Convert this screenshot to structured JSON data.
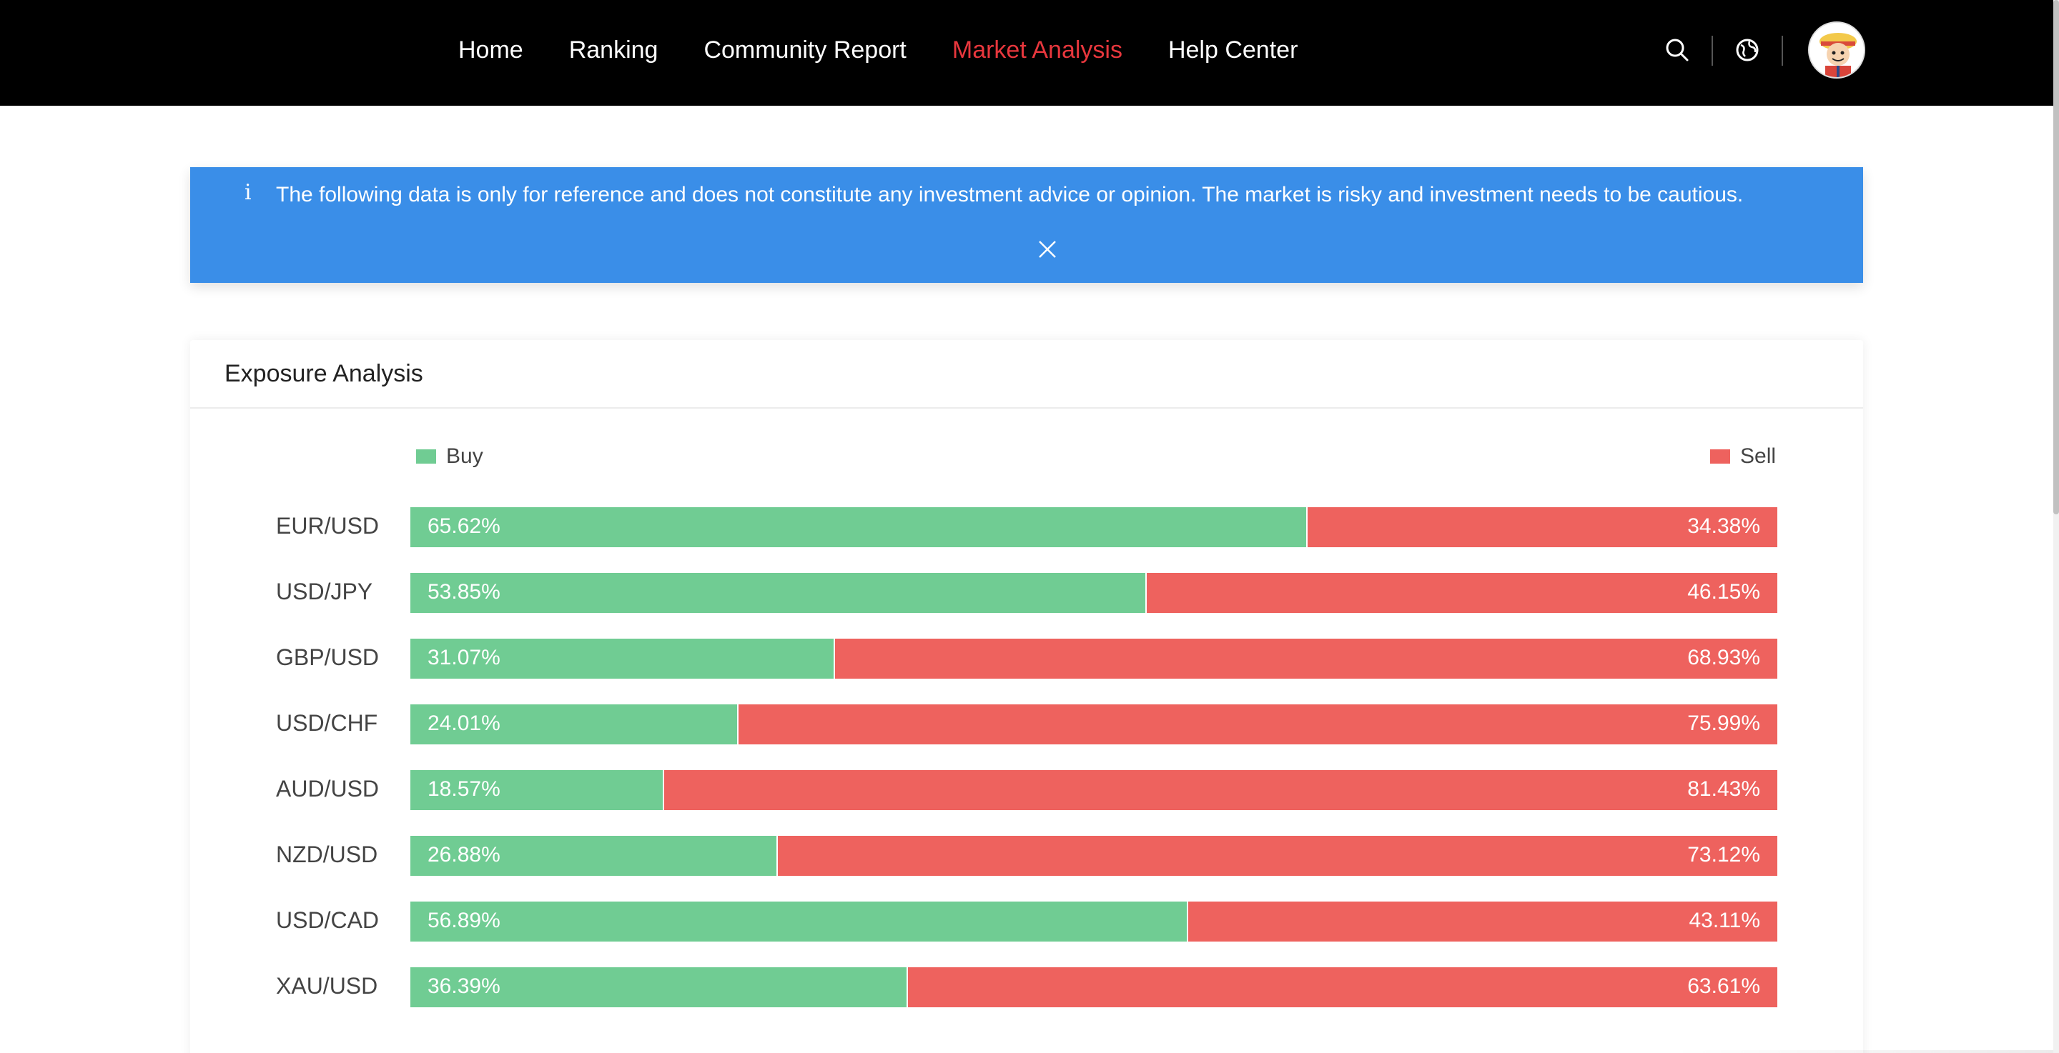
{
  "nav": {
    "items": [
      {
        "label": "Home",
        "active": false
      },
      {
        "label": "Ranking",
        "active": false
      },
      {
        "label": "Community Report",
        "active": false
      },
      {
        "label": "Market Analysis",
        "active": true
      },
      {
        "label": "Help Center",
        "active": false
      }
    ],
    "icons": [
      "search-icon",
      "globe-icon",
      "avatar"
    ]
  },
  "notice": {
    "icon": "i",
    "text": "The following data is only for reference and does not constitute any investment advice or opinion. The market is risky and investment needs to be cautious.",
    "close": "X",
    "color": "#3a8ee8"
  },
  "exposure": {
    "title": "Exposure Analysis",
    "legend": {
      "buy": "Buy",
      "sell": "Sell"
    },
    "colors": {
      "buy": "#70cc93",
      "sell": "#ee625e"
    },
    "rows": [
      {
        "pair": "EUR/USD",
        "buy": "65.62%",
        "sell": "34.38%",
        "buy_value": 65.62
      },
      {
        "pair": "USD/JPY",
        "buy": "53.85%",
        "sell": "46.15%",
        "buy_value": 53.85
      },
      {
        "pair": "GBP/USD",
        "buy": "31.07%",
        "sell": "68.93%",
        "buy_value": 31.07
      },
      {
        "pair": "USD/CHF",
        "buy": "24.01%",
        "sell": "75.99%",
        "buy_value": 24.01
      },
      {
        "pair": "AUD/USD",
        "buy": "18.57%",
        "sell": "81.43%",
        "buy_value": 18.57
      },
      {
        "pair": "NZD/USD",
        "buy": "26.88%",
        "sell": "73.12%",
        "buy_value": 26.88
      },
      {
        "pair": "USD/CAD",
        "buy": "56.89%",
        "sell": "43.11%",
        "buy_value": 56.89
      },
      {
        "pair": "XAU/USD",
        "buy": "36.39%",
        "sell": "63.61%",
        "buy_value": 36.39
      }
    ]
  }
}
